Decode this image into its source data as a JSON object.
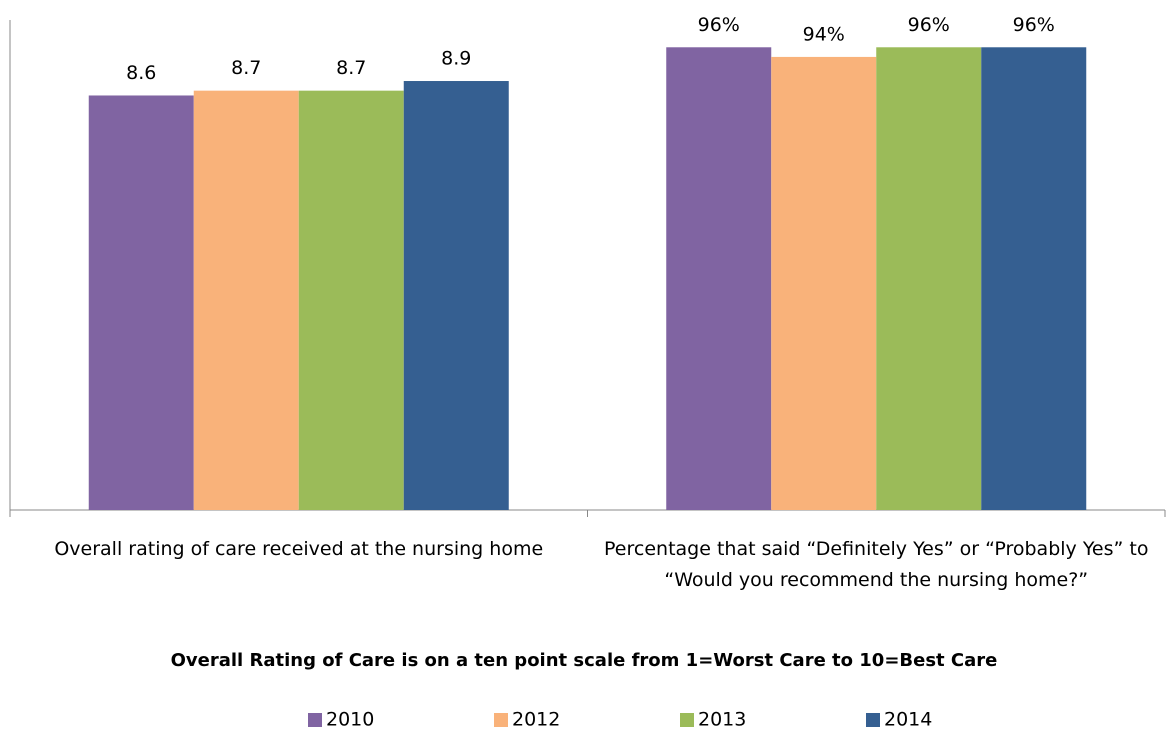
{
  "chart_data": [
    {
      "type": "bar",
      "categories": [
        "Overall rating of care received at the nursing home"
      ],
      "ylim": [
        0,
        10
      ],
      "note": "Overall Rating of Care is on a ten point scale from 1=Worst Care to 10=Best Care",
      "series": [
        {
          "name": "2010",
          "color": "#8064a2",
          "values": [
            8.6
          ]
        },
        {
          "name": "2012",
          "color": "#f9b27a",
          "values": [
            8.7
          ]
        },
        {
          "name": "2013",
          "color": "#9bbb59",
          "values": [
            8.7
          ]
        },
        {
          "name": "2014",
          "color": "#355f91",
          "values": [
            8.9
          ]
        }
      ]
    },
    {
      "type": "bar",
      "categories": [
        "Percentage that said “Definitely Yes” or “Probably Yes” to “Would you recommend the nursing home?”"
      ],
      "ylim": [
        0,
        100
      ],
      "series": [
        {
          "color": "#8064a2",
          "values": [
            96
          ],
          "value_labels": [
            "96%"
          ]
        },
        {
          "color": "#f9b27a",
          "values": [
            94
          ],
          "value_labels": [
            "94%"
          ]
        },
        {
          "color": "#9bbb59",
          "values": [
            96
          ],
          "value_labels": [
            "96%"
          ]
        },
        {
          "color": "#355f91",
          "values": [
            96
          ],
          "value_labels": [
            "96%"
          ]
        }
      ]
    }
  ]
}
